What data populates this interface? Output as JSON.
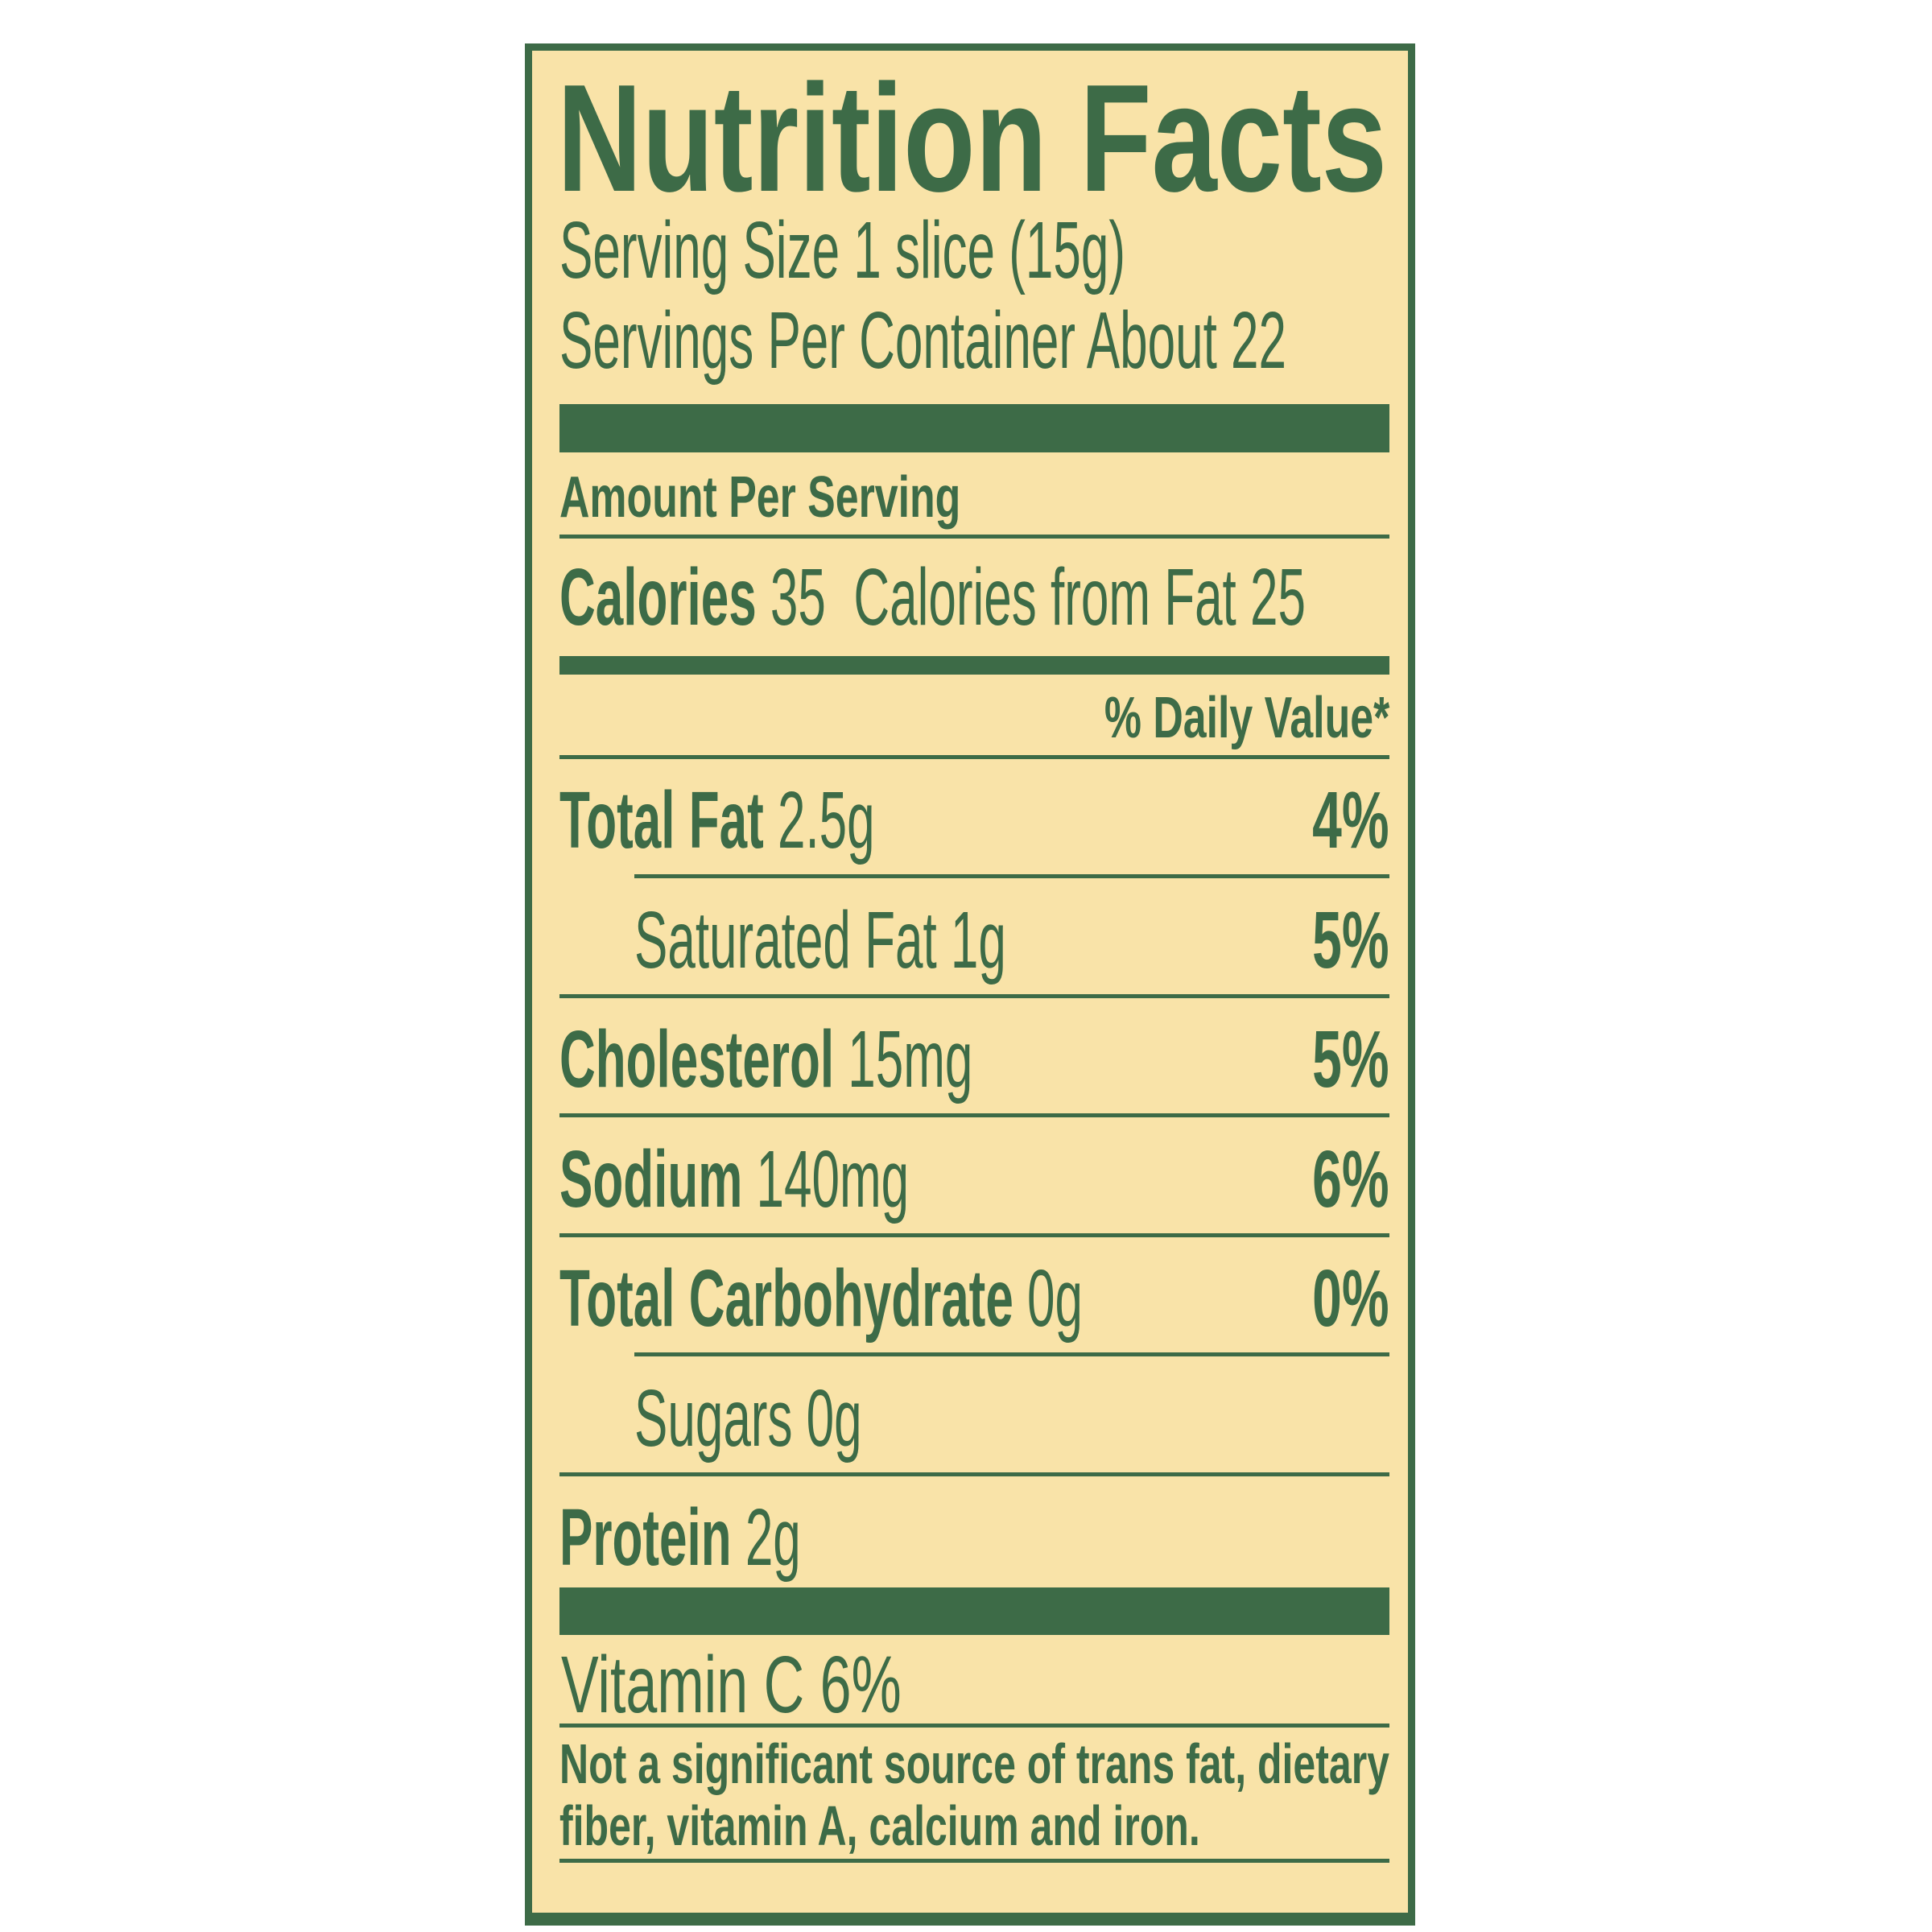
{
  "title": "Nutrition Facts",
  "serving_size": "Serving Size 1 slice (15g)",
  "servings_per_container": "Servings Per Container About 22",
  "amount_per_serving": "Amount Per Serving",
  "calories": {
    "label": "Calories",
    "value": "35",
    "from_fat_label": "Calories from Fat",
    "from_fat_value": "25"
  },
  "daily_value_header": "% Daily Value*",
  "nutrients": [
    {
      "name": "Total Fat",
      "amount": "2.5g",
      "dv": "4%"
    },
    {
      "name": "Saturated Fat",
      "amount": "1g",
      "dv": "5%"
    },
    {
      "name": "Cholesterol",
      "amount": "15mg",
      "dv": "5%"
    },
    {
      "name": "Sodium",
      "amount": "140mg",
      "dv": "6%"
    },
    {
      "name": "Total Carbohydrate",
      "amount": "0g",
      "dv": "0%"
    },
    {
      "name": "Sugars",
      "amount": "0g"
    },
    {
      "name": "Protein",
      "amount": "2g"
    }
  ],
  "vitamin_c": "Vitamin C 6%",
  "footnote": [
    "Not a significant source of trans fat, dietary",
    "fiber, vitamin A, calcium and iron."
  ],
  "colors": {
    "ink": "#3d6b47",
    "background": "#f9e3a8"
  }
}
